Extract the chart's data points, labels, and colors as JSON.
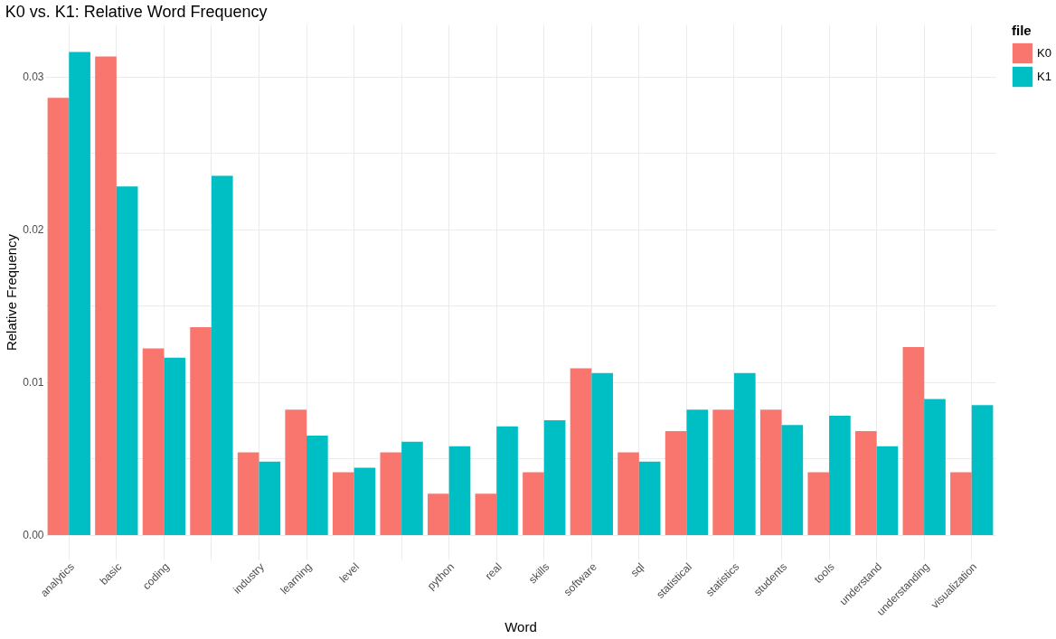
{
  "chart_data": {
    "type": "bar",
    "title": "K0 vs. K1: Relative Word Frequency",
    "xlabel": "Word",
    "ylabel": "Relative Frequency",
    "legend_title": "file",
    "categories": [
      "analytics",
      "basic",
      "coding",
      null,
      "industry",
      "learning",
      "level",
      null,
      "python",
      "real",
      "skills",
      "software",
      "sql",
      "statistical",
      "statistics",
      "students",
      "tools",
      "understand",
      "understanding",
      "visualization"
    ],
    "series": [
      {
        "name": "K0",
        "color": "#f8766d",
        "values": [
          0.0286,
          0.0313,
          0.0122,
          0.0136,
          0.0054,
          0.0082,
          0.0041,
          0.0054,
          0.0027,
          0.0027,
          0.0041,
          0.0109,
          0.0054,
          0.0068,
          0.0082,
          0.0082,
          0.0041,
          0.0068,
          0.0123,
          0.0041
        ]
      },
      {
        "name": "K1",
        "color": "#00bfc4",
        "values": [
          0.0316,
          0.0228,
          0.0116,
          0.0235,
          0.0048,
          0.0065,
          0.0044,
          0.0061,
          0.0058,
          0.0071,
          0.0075,
          0.0106,
          0.0048,
          0.0082,
          0.0106,
          0.0072,
          0.0078,
          0.0058,
          0.0089,
          0.0085
        ]
      }
    ],
    "ylim": [
      -0.0016,
      0.0334
    ],
    "yticks": [
      {
        "value": 0,
        "label": "0.00"
      },
      {
        "value": 0.005,
        "label": null
      },
      {
        "value": 0.01,
        "label": "0.01"
      },
      {
        "value": 0.015,
        "label": null
      },
      {
        "value": 0.02,
        "label": "0.02"
      },
      {
        "value": 0.025,
        "label": null
      },
      {
        "value": 0.03,
        "label": "0.03"
      }
    ],
    "grid": true,
    "legend": "right"
  }
}
